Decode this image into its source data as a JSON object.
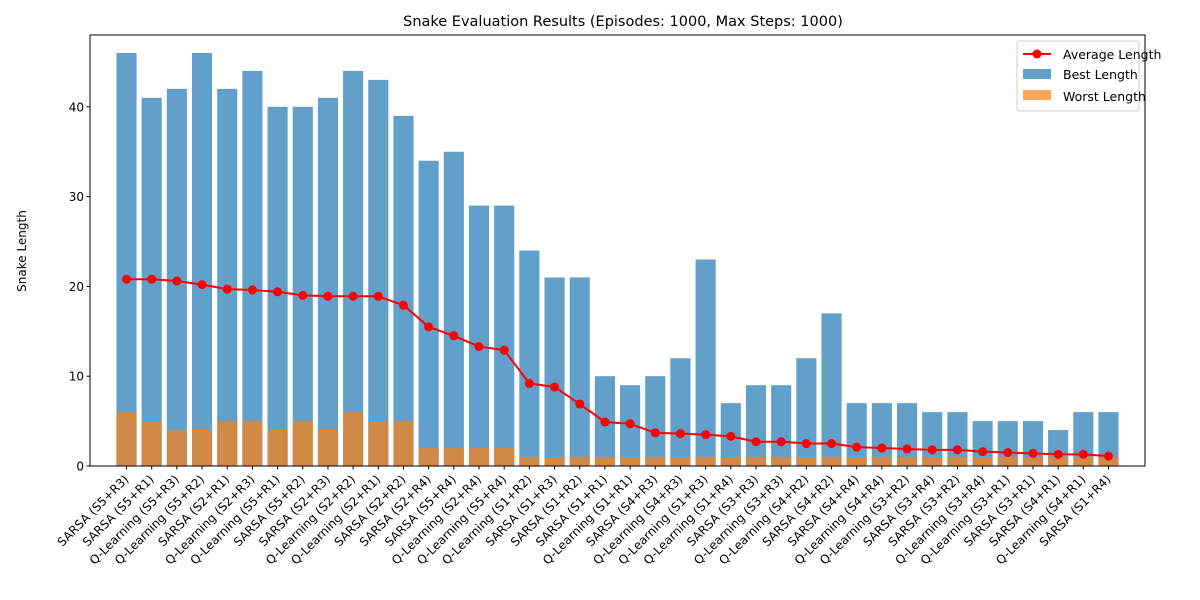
{
  "chart_data": {
    "type": "bar",
    "title": "Snake Evaluation Results (Episodes: 1000, Max Steps: 1000)",
    "xlabel": "",
    "ylabel": "Snake Length",
    "ylim": [
      0,
      48
    ],
    "yticks": [
      0,
      10,
      20,
      30,
      40
    ],
    "grid": false,
    "legend_position": "top-right",
    "categories": [
      "SARSA (S5+R3)",
      "SARSA (S5+R1)",
      "Q-Learning (S5+R3)",
      "Q-Learning (S5+R2)",
      "SARSA (S2+R1)",
      "Q-Learning (S2+R3)",
      "Q-Learning (S5+R1)",
      "SARSA (S5+R2)",
      "SARSA (S2+R3)",
      "Q-Learning (S2+R2)",
      "Q-Learning (S2+R1)",
      "SARSA (S2+R2)",
      "SARSA (S2+R4)",
      "SARSA (S5+R4)",
      "Q-Learning (S2+R4)",
      "Q-Learning (S5+R4)",
      "Q-Learning (S1+R2)",
      "SARSA (S1+R3)",
      "SARSA (S1+R2)",
      "SARSA (S1+R1)",
      "Q-Learning (S1+R1)",
      "SARSA (S4+R3)",
      "Q-Learning (S4+R3)",
      "Q-Learning (S1+R3)",
      "Q-Learning (S1+R4)",
      "SARSA (S3+R3)",
      "Q-Learning (S3+R3)",
      "Q-Learning (S4+R2)",
      "SARSA (S4+R2)",
      "SARSA (S4+R4)",
      "Q-Learning (S4+R4)",
      "Q-Learning (S3+R2)",
      "SARSA (S3+R4)",
      "SARSA (S3+R2)",
      "Q-Learning (S3+R4)",
      "Q-Learning (S3+R1)",
      "SARSA (S3+R1)",
      "SARSA (S4+R1)",
      "Q-Learning (S4+R1)",
      "SARSA (S1+R4)"
    ],
    "series": [
      {
        "name": "Average Length",
        "kind": "line",
        "color": "#ff0000",
        "values": [
          20.8,
          20.8,
          20.6,
          20.2,
          19.7,
          19.6,
          19.4,
          19.0,
          18.9,
          18.9,
          18.9,
          17.9,
          15.5,
          14.5,
          13.3,
          12.9,
          9.2,
          8.8,
          6.9,
          4.9,
          4.7,
          3.7,
          3.6,
          3.5,
          3.3,
          2.7,
          2.7,
          2.5,
          2.5,
          2.1,
          2.0,
          1.9,
          1.8,
          1.8,
          1.6,
          1.5,
          1.4,
          1.3,
          1.3,
          1.1
        ]
      },
      {
        "name": "Best Length",
        "kind": "bar",
        "color": "#1f77b4",
        "opacity": 0.7,
        "values": [
          46,
          41,
          42,
          46,
          42,
          44,
          40,
          40,
          41,
          44,
          43,
          39,
          34,
          35,
          29,
          29,
          24,
          21,
          21,
          10,
          9,
          10,
          12,
          23,
          7,
          9,
          9,
          12,
          17,
          7,
          7,
          7,
          6,
          6,
          5,
          5,
          5,
          4,
          6,
          6
        ]
      },
      {
        "name": "Worst Length",
        "kind": "bar",
        "color": "#ff7f0e",
        "opacity": 0.7,
        "values": [
          6,
          5,
          4,
          4,
          5,
          5,
          4,
          5,
          4,
          6,
          5,
          5,
          2,
          2,
          2,
          2,
          1,
          1,
          1,
          1,
          1,
          1,
          1,
          1,
          1,
          1,
          1,
          1,
          1,
          1,
          1,
          1,
          1,
          1,
          1,
          1,
          1,
          1,
          1,
          1
        ]
      }
    ]
  }
}
